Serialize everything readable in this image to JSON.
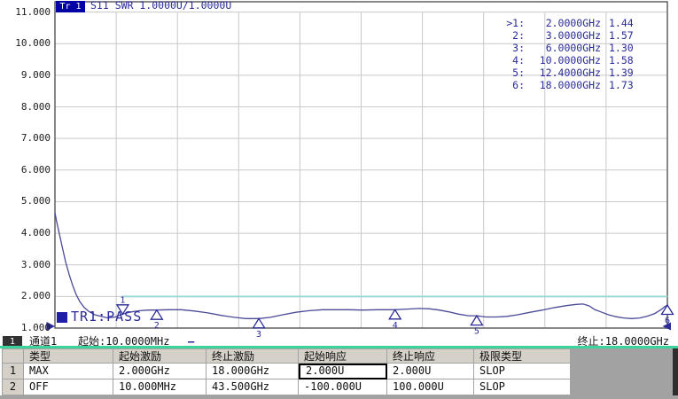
{
  "trace_header": {
    "tr_label": "Tr 1",
    "title": "S11 SWR 1.0000U/1.0000U"
  },
  "pass_badge": "TR1:PASS",
  "status": {
    "channel_num": "1",
    "channel_label": "通道1",
    "start_label": "起始:10.0000MHz",
    "trace_dash": "—",
    "stop_label": "终止:18.0000GHz"
  },
  "colors": {
    "accent_navy": "#2a2a9a",
    "trace": "#4a4a99",
    "limit_line": "#9fdada",
    "grid": "#c9c9c9",
    "plot_border": "#555555",
    "green_separator": "#3cd49c",
    "table_header_bg": "#d5d1c9",
    "filler_gray": "#a2a2a2",
    "tr_badge_bg": "#0000a6",
    "channel_box_bg": "#333333"
  },
  "table": {
    "headers": [
      "类型",
      "起始激励",
      "终止激励",
      "起始响应",
      "终止响应",
      "极限类型"
    ],
    "col_keys": [
      "type",
      "start-stimulus",
      "stop-stimulus",
      "start-response",
      "stop-response",
      "limit-type"
    ],
    "rows": [
      {
        "num": "1",
        "cells": [
          "MAX",
          "2.000GHz",
          "18.000GHz",
          "2.000U",
          "2.000U",
          "SLOP"
        ],
        "selected_cell": 3
      },
      {
        "num": "2",
        "cells": [
          "OFF",
          "10.000MHz",
          "43.500GHz",
          "-100.000U",
          "100.000U",
          "SLOP"
        ]
      }
    ]
  },
  "chart_data": {
    "type": "line",
    "title": "S11 SWR 1.0000U/1.0000U",
    "x_axis": {
      "start": "10.0000MHz",
      "stop": "18.0000GHz",
      "min_ghz": 0.01,
      "max_ghz": 18,
      "divisions": 10
    },
    "y_axis": {
      "min": 1,
      "max": 11,
      "units_per_div": 1,
      "tick_labels": [
        "11.000",
        "10.000",
        "9.000",
        "8.000",
        "7.000",
        "6.000",
        "5.000",
        "4.000",
        "3.000",
        "2.000",
        "1.000"
      ],
      "tick_values": [
        11,
        10,
        9,
        8,
        7,
        6,
        5,
        4,
        3,
        2,
        1
      ]
    },
    "grid": true,
    "limit_line": {
      "type": "MAX",
      "start_ghz": 2.0,
      "stop_ghz": 18.0,
      "value": 2.0
    },
    "markers": [
      {
        "n": "1",
        "freq": "2.0000GHz",
        "freq_ghz": 2.0,
        "swr": 1.44,
        "swr_txt": "1.44",
        "active": true,
        "dir": "down"
      },
      {
        "n": "2",
        "freq": "3.0000GHz",
        "freq_ghz": 3.0,
        "swr": 1.57,
        "swr_txt": "1.57",
        "active": false,
        "dir": "up"
      },
      {
        "n": "3",
        "freq": "6.0000GHz",
        "freq_ghz": 6.0,
        "swr": 1.3,
        "swr_txt": "1.30",
        "active": false,
        "dir": "up"
      },
      {
        "n": "4",
        "freq": "10.0000GHz",
        "freq_ghz": 10.0,
        "swr": 1.58,
        "swr_txt": "1.58",
        "active": false,
        "dir": "up"
      },
      {
        "n": "5",
        "freq": "12.4000GHz",
        "freq_ghz": 12.4,
        "swr": 1.39,
        "swr_txt": "1.39",
        "active": false,
        "dir": "up"
      },
      {
        "n": "6",
        "freq": "18.0000GHz",
        "freq_ghz": 18.0,
        "swr": 1.73,
        "swr_txt": "1.73",
        "active": false,
        "dir": "up"
      }
    ],
    "series": [
      {
        "name": "S11 SWR",
        "points": [
          [
            0.01,
            4.65
          ],
          [
            0.06,
            4.37
          ],
          [
            0.14,
            3.98
          ],
          [
            0.22,
            3.58
          ],
          [
            0.32,
            3.11
          ],
          [
            0.43,
            2.69
          ],
          [
            0.53,
            2.35
          ],
          [
            0.63,
            2.07
          ],
          [
            0.74,
            1.84
          ],
          [
            0.87,
            1.65
          ],
          [
            1.0,
            1.53
          ],
          [
            1.18,
            1.42
          ],
          [
            1.36,
            1.37
          ],
          [
            1.57,
            1.32
          ],
          [
            1.78,
            1.35
          ],
          [
            2.0,
            1.44
          ],
          [
            2.24,
            1.51
          ],
          [
            2.5,
            1.55
          ],
          [
            2.76,
            1.57
          ],
          [
            3.0,
            1.57
          ],
          [
            3.33,
            1.58
          ],
          [
            3.72,
            1.58
          ],
          [
            4.11,
            1.54
          ],
          [
            4.5,
            1.48
          ],
          [
            4.89,
            1.4
          ],
          [
            5.28,
            1.34
          ],
          [
            5.62,
            1.3
          ],
          [
            6.0,
            1.3
          ],
          [
            6.34,
            1.34
          ],
          [
            6.7,
            1.42
          ],
          [
            7.09,
            1.5
          ],
          [
            7.48,
            1.55
          ],
          [
            7.87,
            1.58
          ],
          [
            8.26,
            1.58
          ],
          [
            8.65,
            1.58
          ],
          [
            9.04,
            1.57
          ],
          [
            9.51,
            1.58
          ],
          [
            9.98,
            1.58
          ],
          [
            10.34,
            1.6
          ],
          [
            10.7,
            1.62
          ],
          [
            11.02,
            1.61
          ],
          [
            11.3,
            1.57
          ],
          [
            11.59,
            1.51
          ],
          [
            11.87,
            1.44
          ],
          [
            12.16,
            1.39
          ],
          [
            12.4,
            1.39
          ],
          [
            12.67,
            1.35
          ],
          [
            12.98,
            1.35
          ],
          [
            13.29,
            1.37
          ],
          [
            13.6,
            1.42
          ],
          [
            13.97,
            1.5
          ],
          [
            14.33,
            1.57
          ],
          [
            14.7,
            1.65
          ],
          [
            15.03,
            1.71
          ],
          [
            15.32,
            1.75
          ],
          [
            15.53,
            1.76
          ],
          [
            15.71,
            1.7
          ],
          [
            15.86,
            1.59
          ],
          [
            16.05,
            1.51
          ],
          [
            16.25,
            1.43
          ],
          [
            16.49,
            1.36
          ],
          [
            16.72,
            1.32
          ],
          [
            16.95,
            1.3
          ],
          [
            17.19,
            1.32
          ],
          [
            17.42,
            1.38
          ],
          [
            17.63,
            1.46
          ],
          [
            17.81,
            1.58
          ],
          [
            17.94,
            1.69
          ],
          [
            18.0,
            1.73
          ]
        ]
      }
    ]
  }
}
